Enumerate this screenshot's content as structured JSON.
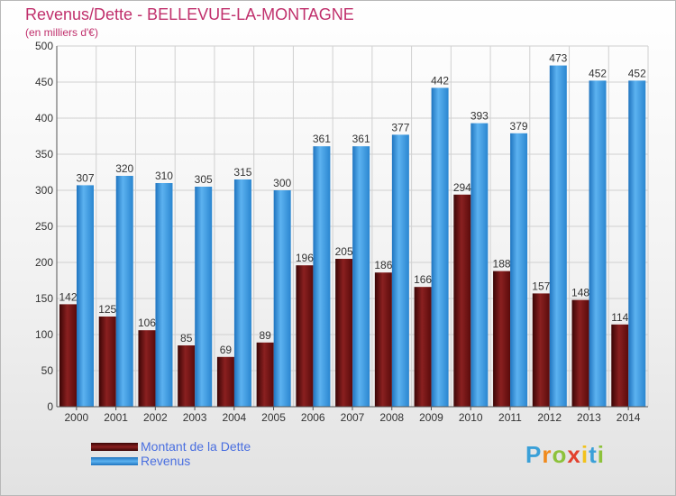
{
  "title": "Revenus/Dette - BELLEVUE-LA-MONTAGNE",
  "subtitle": "(en milliers d'€)",
  "logo": "Proxiti",
  "colors": {
    "title": "#c0306c",
    "dette": "#7a1a1a",
    "revenus": "#2e8fd8",
    "legend_text": "#4a6fe0"
  },
  "chart_data": {
    "type": "bar",
    "categories": [
      "2000",
      "2001",
      "2002",
      "2003",
      "2004",
      "2005",
      "2006",
      "2007",
      "2008",
      "2009",
      "2010",
      "2011",
      "2012",
      "2013",
      "2014"
    ],
    "series": [
      {
        "name": "Montant de la Dette",
        "values": [
          142,
          125,
          106,
          85,
          69,
          89,
          196,
          205,
          186,
          166,
          294,
          188,
          157,
          148,
          114
        ]
      },
      {
        "name": "Revenus",
        "values": [
          307,
          320,
          310,
          305,
          315,
          300,
          361,
          361,
          377,
          442,
          393,
          379,
          473,
          452,
          452
        ]
      }
    ],
    "yticks": [
      0,
      50,
      100,
      150,
      200,
      250,
      300,
      350,
      400,
      450,
      500
    ],
    "ylim": [
      0,
      500
    ],
    "grid": true,
    "legend_position": "bottom-left"
  }
}
